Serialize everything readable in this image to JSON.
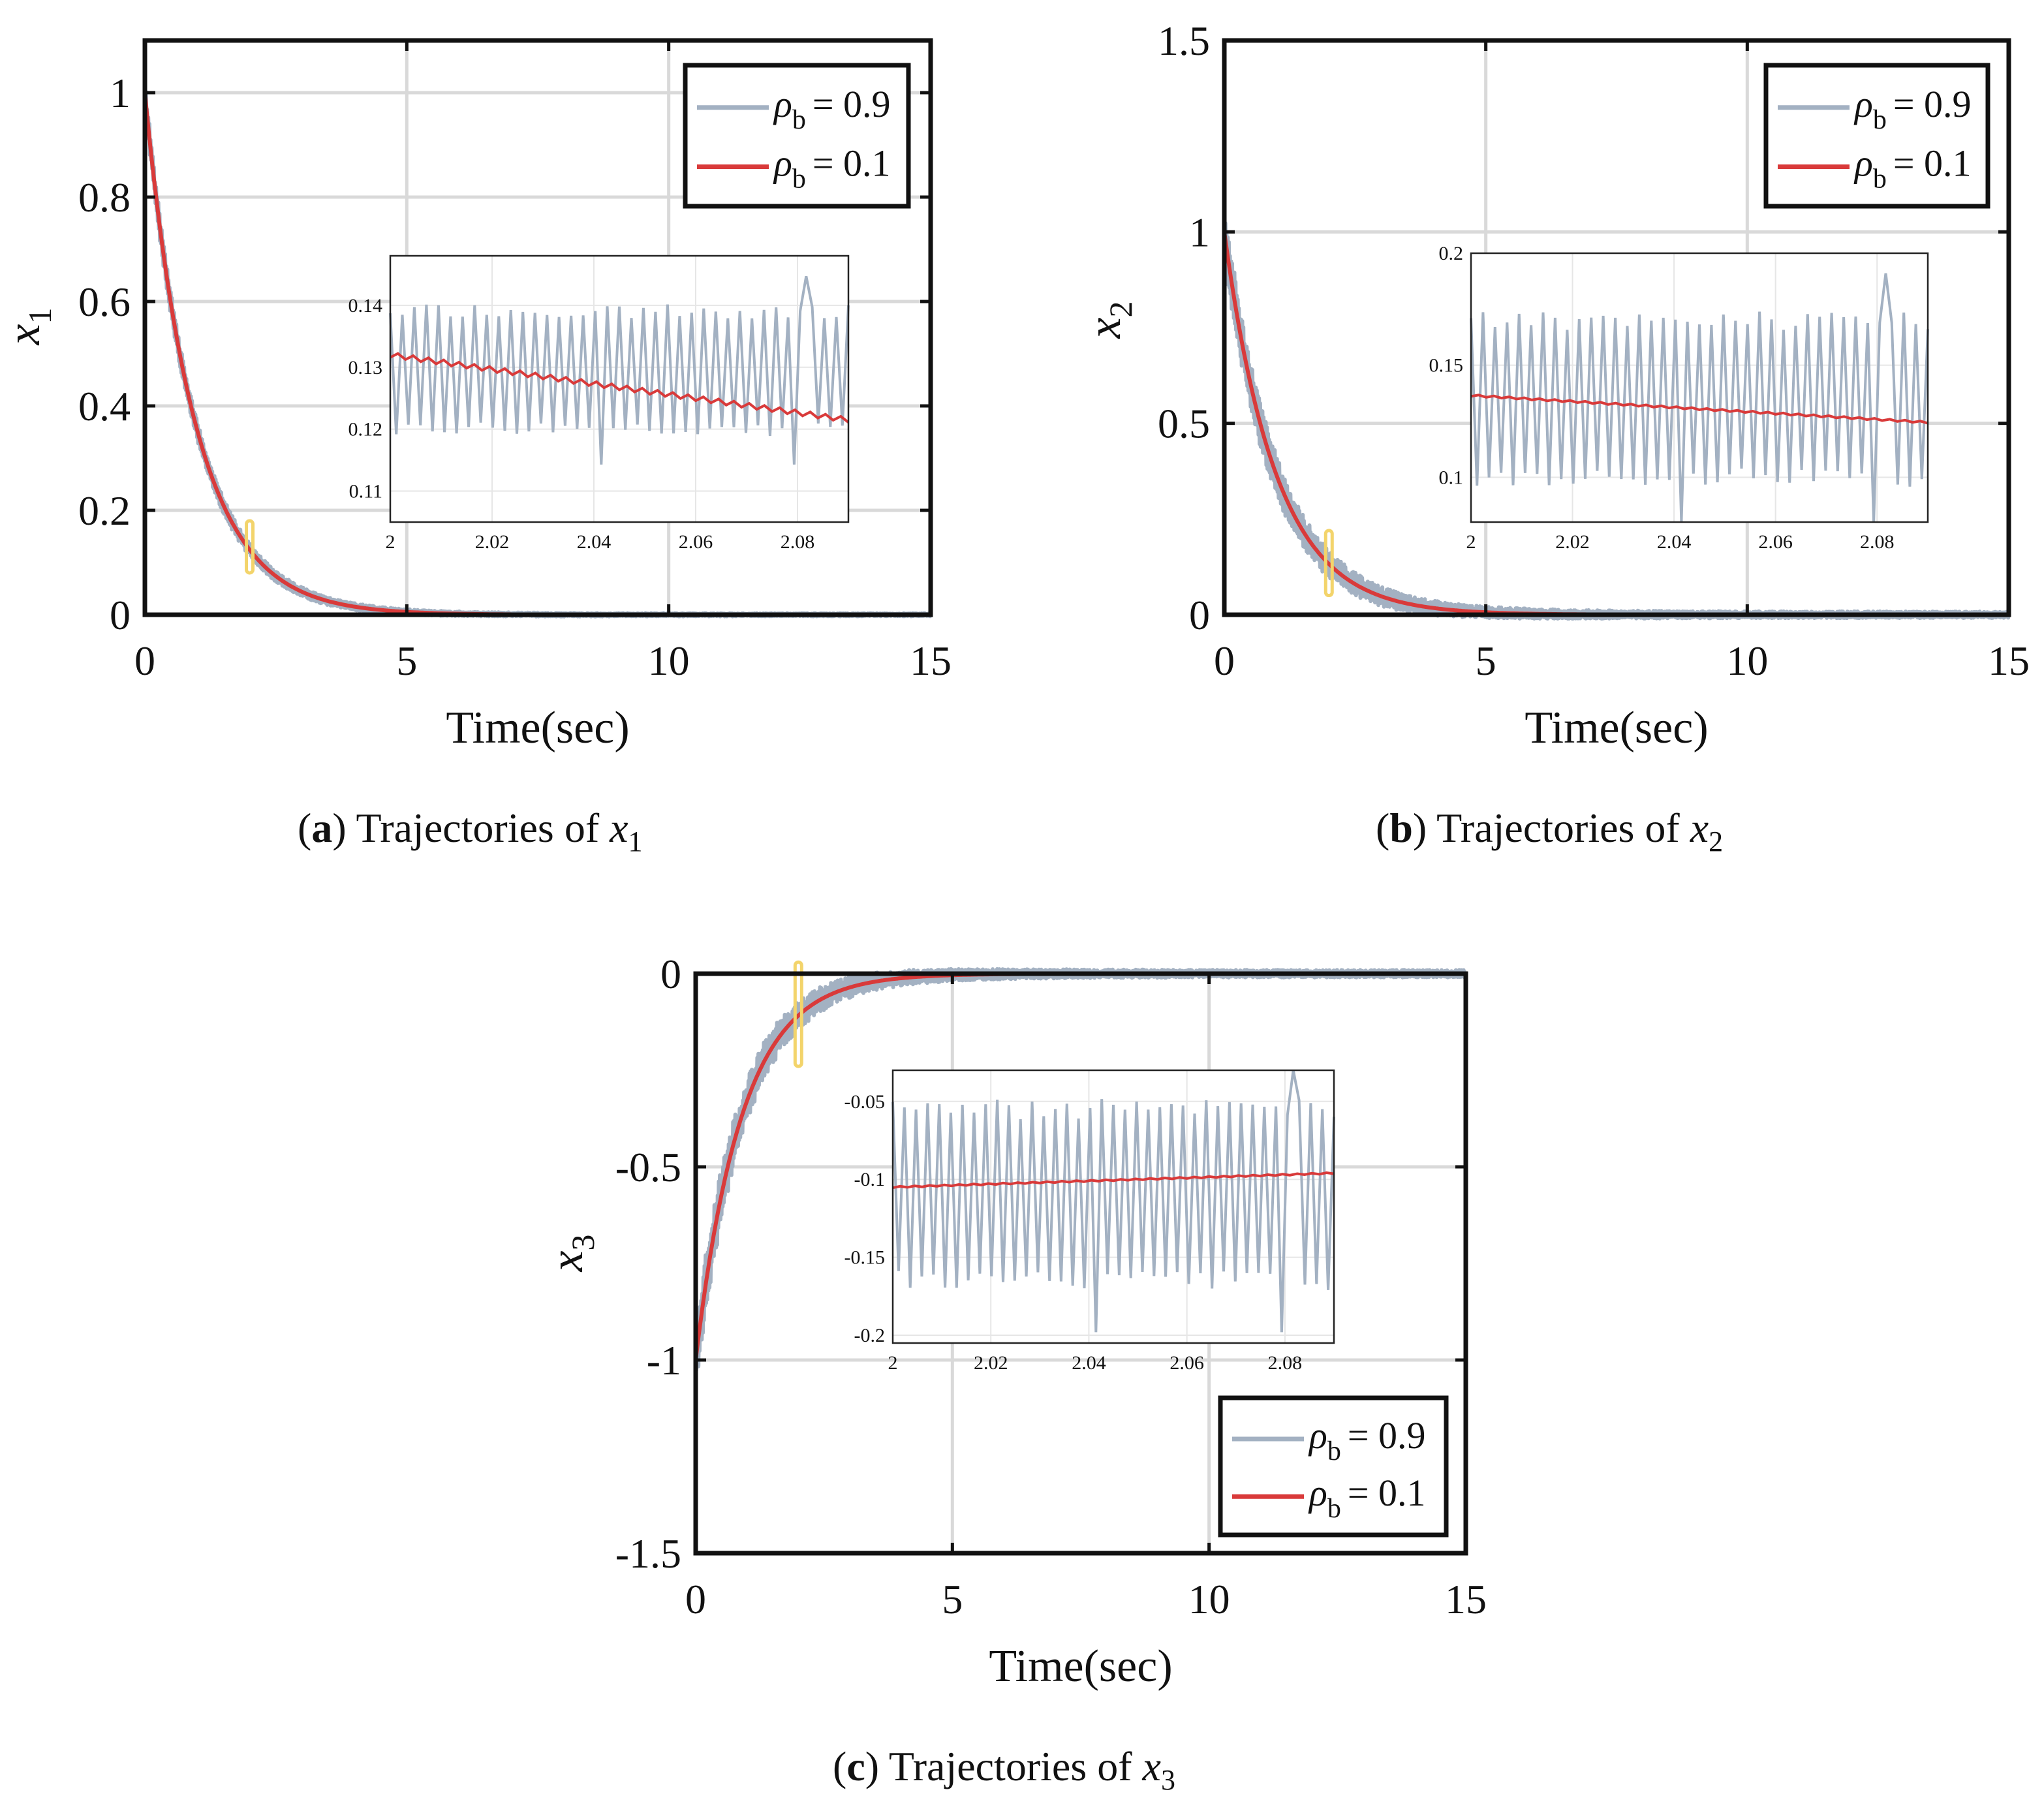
{
  "colors": {
    "rho09": "#a3b1c2",
    "rho01": "#d93a3a",
    "highlight": "#f3d46b",
    "grid": "#d9d9d9",
    "axis": "#111111"
  },
  "captions": [
    {
      "tag": "a",
      "text": "Trajectories of",
      "var": "x",
      "sub": "1"
    },
    {
      "tag": "b",
      "text": "Trajectories of",
      "var": "x",
      "sub": "2"
    },
    {
      "tag": "c",
      "text": "Trajectories of",
      "var": "x",
      "sub": "3"
    }
  ],
  "chart_data": [
    {
      "id": "a",
      "type": "line",
      "xlabel": "Time(sec)",
      "ylabel_var": "x",
      "ylabel_sub": "1",
      "xlim": [
        0,
        15
      ],
      "ylim": [
        0,
        1.1
      ],
      "xticks": [
        0,
        5,
        10,
        15
      ],
      "xtick_labels": [
        "0",
        "5",
        "10",
        "15"
      ],
      "yticks": [
        0,
        0.2,
        0.4,
        0.6,
        0.8,
        1
      ],
      "ytick_labels": [
        "0",
        "0.2",
        "0.4",
        "0.6",
        "0.8",
        "1"
      ],
      "grid": true,
      "legend_position": "top-right",
      "series": [
        {
          "name": "ρb = 0.9",
          "label_main": "ρ",
          "label_sub": "b",
          "label_val": "= 0.9",
          "x0": 1.0,
          "tau": 0.96,
          "noise": 0.025
        },
        {
          "name": "ρb = 0.1",
          "label_main": "ρ",
          "label_sub": "b",
          "label_val": "= 0.1",
          "x0": 1.0,
          "tau": 0.96,
          "noise": 0.0
        }
      ],
      "highlight_window": {
        "x": 2.0,
        "y_range": [
          0.08,
          0.18
        ]
      },
      "inset": {
        "xlim": [
          2,
          2.09
        ],
        "ylim": [
          0.105,
          0.148
        ],
        "xticks": [
          2,
          2.02,
          2.04,
          2.06,
          2.08
        ],
        "xtick_labels": [
          "2",
          "2.02",
          "2.04",
          "2.06",
          "2.08"
        ],
        "yticks": [
          0.11,
          0.12,
          0.13,
          0.14
        ],
        "ytick_labels": [
          "0.11",
          "0.12",
          "0.13",
          "0.14"
        ],
        "smooth_start": 0.132,
        "smooth_end": 0.1215,
        "osc_high": 0.139,
        "osc_low": 0.12,
        "osc_count": 38
      }
    },
    {
      "id": "b",
      "type": "line",
      "xlabel": "Time(sec)",
      "ylabel_var": "x",
      "ylabel_sub": "2",
      "xlim": [
        0,
        15
      ],
      "ylim": [
        0,
        1.5
      ],
      "xticks": [
        0,
        5,
        10,
        15
      ],
      "xtick_labels": [
        "0",
        "5",
        "10",
        "15"
      ],
      "yticks": [
        0,
        0.5,
        1,
        1.5
      ],
      "ytick_labels": [
        "0",
        "0.5",
        "1",
        "1.5"
      ],
      "grid": true,
      "legend_position": "top-right",
      "series": [
        {
          "name": "ρb = 0.9",
          "label_main": "ρ",
          "label_sub": "b",
          "label_val": "= 0.9",
          "x0": 1.0,
          "tau": 0.99,
          "noise": 0.07
        },
        {
          "name": "ρb = 0.1",
          "label_main": "ρ",
          "label_sub": "b",
          "label_val": "= 0.1",
          "x0": 1.0,
          "tau": 0.99,
          "noise": 0.0
        }
      ],
      "highlight_window": {
        "x": 2.0,
        "y_range": [
          0.05,
          0.22
        ]
      },
      "inset": {
        "xlim": [
          2,
          2.09
        ],
        "ylim": [
          0.08,
          0.2
        ],
        "xticks": [
          2,
          2.02,
          2.04,
          2.06,
          2.08
        ],
        "xtick_labels": [
          "2",
          "2.02",
          "2.04",
          "2.06",
          "2.08"
        ],
        "yticks": [
          0.1,
          0.15,
          0.2
        ],
        "ytick_labels": [
          "0.1",
          "0.15",
          "0.2"
        ],
        "smooth_start": 0.1365,
        "smooth_end": 0.1245,
        "osc_high": 0.17,
        "osc_low": 0.1,
        "osc_count": 38
      }
    },
    {
      "id": "c",
      "type": "line",
      "xlabel": "Time(sec)",
      "ylabel_var": "x",
      "ylabel_sub": "3",
      "xlim": [
        0,
        15
      ],
      "ylim": [
        -1.5,
        0
      ],
      "xticks": [
        0,
        5,
        10,
        15
      ],
      "xtick_labels": [
        "0",
        "5",
        "10",
        "15"
      ],
      "yticks": [
        -1.5,
        -1,
        -0.5,
        0
      ],
      "ytick_labels": [
        "-1.5",
        "-1",
        "-0.5",
        "0"
      ],
      "grid": true,
      "legend_position": "bottom-right",
      "series": [
        {
          "name": "ρb = 0.9",
          "label_main": "ρ",
          "label_sub": "b",
          "label_val": "= 0.9",
          "x0": -1.0,
          "tau": 0.9,
          "noise": 0.08
        },
        {
          "name": "ρb = 0.1",
          "label_main": "ρ",
          "label_sub": "b",
          "label_val": "= 0.1",
          "x0": -1.0,
          "tau": 0.9,
          "noise": 0.0
        }
      ],
      "highlight_window": {
        "x": 2.0,
        "y_range": [
          -0.24,
          0.03
        ]
      },
      "inset": {
        "xlim": [
          2,
          2.09
        ],
        "ylim": [
          -0.205,
          -0.03
        ],
        "xticks": [
          2,
          2.02,
          2.04,
          2.06,
          2.08
        ],
        "xtick_labels": [
          "2",
          "2.02",
          "2.04",
          "2.06",
          "2.08"
        ],
        "yticks": [
          -0.2,
          -0.15,
          -0.1,
          -0.05
        ],
        "ytick_labels": [
          "-0.2",
          "-0.15",
          "-0.1",
          "-0.05"
        ],
        "smooth_start": -0.105,
        "smooth_end": -0.096,
        "osc_high": -0.055,
        "osc_low": -0.165,
        "osc_count": 38
      }
    }
  ]
}
